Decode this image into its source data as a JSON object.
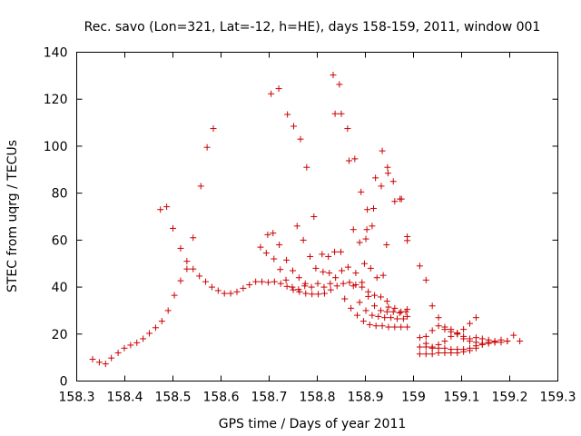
{
  "colors": {
    "series": "#cc0000",
    "axes": "#000000",
    "background": "#ffffff"
  },
  "chart_data": {
    "type": "scatter",
    "title": "Rec. savo (Lon=321, Lat=-12, h=HE), days 158-159, 2011, window 001",
    "xlabel": "GPS time / Days of year 2011",
    "ylabel": "STEC from uqrg / TECUs",
    "xlim": [
      158.3,
      159.3
    ],
    "ylim": [
      0,
      140
    ],
    "xticks": [
      158.3,
      158.4,
      158.5,
      158.6,
      158.7,
      158.8,
      158.9,
      159,
      159.1,
      159.2,
      159.3
    ],
    "xtick_labels": [
      "158.3",
      "158.4",
      "158.5",
      "158.6",
      "158.7",
      "158.8",
      "158.9",
      "159",
      "159.1",
      "159.2",
      "159.3"
    ],
    "yticks": [
      0,
      20,
      40,
      60,
      80,
      100,
      120,
      140
    ],
    "ytick_labels": [
      "0",
      "20",
      "40",
      "60",
      "80",
      "100",
      "120",
      "140"
    ],
    "grid": false,
    "legend": "none",
    "marker": "+",
    "series": [
      {
        "points": [
          [
            158.333,
            9.3
          ],
          [
            158.347,
            8.0
          ],
          [
            158.36,
            7.3
          ],
          [
            158.372,
            9.8
          ],
          [
            158.386,
            12.0
          ],
          [
            158.399,
            14.0
          ],
          [
            158.412,
            15.3
          ],
          [
            158.425,
            16.3
          ],
          [
            158.438,
            18.0
          ],
          [
            158.451,
            20.3
          ],
          [
            158.464,
            22.7
          ],
          [
            158.477,
            25.5
          ],
          [
            158.49,
            30.0
          ],
          [
            158.503,
            36.5
          ],
          [
            158.516,
            42.7
          ],
          [
            158.529,
            47.7
          ],
          [
            158.542,
            47.7
          ],
          [
            158.555,
            44.7
          ],
          [
            158.568,
            42.3
          ],
          [
            158.581,
            40.0
          ],
          [
            158.594,
            38.5
          ],
          [
            158.607,
            37.3
          ],
          [
            158.62,
            37.3
          ],
          [
            158.633,
            38.0
          ],
          [
            158.646,
            39.5
          ],
          [
            158.659,
            41.0
          ],
          [
            158.672,
            42.3
          ],
          [
            158.685,
            42.3
          ],
          [
            158.698,
            42.0
          ],
          [
            158.711,
            42.3
          ],
          [
            158.724,
            41.5
          ],
          [
            158.737,
            40.3
          ],
          [
            158.75,
            38.8
          ],
          [
            158.763,
            38.0
          ],
          [
            158.776,
            37.3
          ],
          [
            158.789,
            37.0
          ],
          [
            158.802,
            37.0
          ],
          [
            158.815,
            37.3
          ],
          [
            158.828,
            38.8
          ],
          [
            158.841,
            40.5
          ],
          [
            158.854,
            41.5
          ],
          [
            158.867,
            42.0
          ],
          [
            158.88,
            41.0
          ],
          [
            158.893,
            40.0
          ],
          [
            158.906,
            38.0
          ],
          [
            158.919,
            36.5
          ],
          [
            158.932,
            35.8
          ],
          [
            158.945,
            34.0
          ],
          [
            158.474,
            73.0
          ],
          [
            158.487,
            74.2
          ],
          [
            158.5,
            65.0
          ],
          [
            158.516,
            56.5
          ],
          [
            158.529,
            51.0
          ],
          [
            158.542,
            61.0
          ],
          [
            158.558,
            83.0
          ],
          [
            158.571,
            99.5
          ],
          [
            158.584,
            107.5
          ],
          [
            158.682,
            57.0
          ],
          [
            158.694,
            54.5
          ],
          [
            158.697,
            62.3
          ],
          [
            158.708,
            63.0
          ],
          [
            158.721,
            58.0
          ],
          [
            158.704,
            122.3
          ],
          [
            158.72,
            124.5
          ],
          [
            158.738,
            113.5
          ],
          [
            158.751,
            108.5
          ],
          [
            158.765,
            103.0
          ],
          [
            158.778,
            91.0
          ],
          [
            158.793,
            70.0
          ],
          [
            158.758,
            66.0
          ],
          [
            158.771,
            60.0
          ],
          [
            158.785,
            53.0
          ],
          [
            158.71,
            52.0
          ],
          [
            158.723,
            47.5
          ],
          [
            158.736,
            51.5
          ],
          [
            158.749,
            47.0
          ],
          [
            158.762,
            44.0
          ],
          [
            158.775,
            41.5
          ],
          [
            158.788,
            40.0
          ],
          [
            158.801,
            41.5
          ],
          [
            158.814,
            40.0
          ],
          [
            158.827,
            41.5
          ],
          [
            158.735,
            43.0
          ],
          [
            158.748,
            40.0
          ],
          [
            158.761,
            39.0
          ],
          [
            158.774,
            40.5
          ],
          [
            158.797,
            48.0
          ],
          [
            158.81,
            54.0
          ],
          [
            158.823,
            53.0
          ],
          [
            158.836,
            55.0
          ],
          [
            158.849,
            55.0
          ],
          [
            158.812,
            46.5
          ],
          [
            158.825,
            46.0
          ],
          [
            158.838,
            44.0
          ],
          [
            158.851,
            47.0
          ],
          [
            158.864,
            48.5
          ],
          [
            158.833,
            130.3
          ],
          [
            158.846,
            126.3
          ],
          [
            158.837,
            113.8
          ],
          [
            158.85,
            113.8
          ],
          [
            158.863,
            107.5
          ],
          [
            158.866,
            93.8
          ],
          [
            158.878,
            94.6
          ],
          [
            158.891,
            80.5
          ],
          [
            158.904,
            73.0
          ],
          [
            158.917,
            73.5
          ],
          [
            158.921,
            86.5
          ],
          [
            158.935,
            98.0
          ],
          [
            158.933,
            83.0
          ],
          [
            158.946,
            91.0
          ],
          [
            158.947,
            88.5
          ],
          [
            158.958,
            85.0
          ],
          [
            158.961,
            76.5
          ],
          [
            158.972,
            77.5
          ],
          [
            158.975,
            77.5
          ],
          [
            158.875,
            64.5
          ],
          [
            158.888,
            59.0
          ],
          [
            158.901,
            60.5
          ],
          [
            158.903,
            64.5
          ],
          [
            158.914,
            66.0
          ],
          [
            158.898,
            50.0
          ],
          [
            158.911,
            48.0
          ],
          [
            158.924,
            44.0
          ],
          [
            158.937,
            45.0
          ],
          [
            158.944,
            58.0
          ],
          [
            158.857,
            35.0
          ],
          [
            158.87,
            31.0
          ],
          [
            158.883,
            28.0
          ],
          [
            158.896,
            25.5
          ],
          [
            158.909,
            24.0
          ],
          [
            158.922,
            23.5
          ],
          [
            158.935,
            23.5
          ],
          [
            158.948,
            23.0
          ],
          [
            158.961,
            23.0
          ],
          [
            158.974,
            23.0
          ],
          [
            158.987,
            23.0
          ],
          [
            158.875,
            40.5
          ],
          [
            158.888,
            33.5
          ],
          [
            158.901,
            30.0
          ],
          [
            158.914,
            28.0
          ],
          [
            158.927,
            27.5
          ],
          [
            158.94,
            27.0
          ],
          [
            158.953,
            27.0
          ],
          [
            158.966,
            26.5
          ],
          [
            158.979,
            26.5
          ],
          [
            158.987,
            27.5
          ],
          [
            158.88,
            46.0
          ],
          [
            158.893,
            42.0
          ],
          [
            158.906,
            36.0
          ],
          [
            158.919,
            32.0
          ],
          [
            158.932,
            30.0
          ],
          [
            158.945,
            29.5
          ],
          [
            158.958,
            29.5
          ],
          [
            158.971,
            29.0
          ],
          [
            158.984,
            29.5
          ],
          [
            158.948,
            31.5
          ],
          [
            158.961,
            31.0
          ],
          [
            158.974,
            29.5
          ],
          [
            158.987,
            30.5
          ],
          [
            158.987,
            61.5
          ],
          [
            158.987,
            59.8
          ],
          [
            159.013,
            18.5
          ],
          [
            159.026,
            16.0
          ],
          [
            159.039,
            14.5
          ],
          [
            159.052,
            14.0
          ],
          [
            159.065,
            14.0
          ],
          [
            159.078,
            13.5
          ],
          [
            159.091,
            13.5
          ],
          [
            159.104,
            13.5
          ],
          [
            159.117,
            14.0
          ],
          [
            159.13,
            15.0
          ],
          [
            159.143,
            15.5
          ],
          [
            159.156,
            16.0
          ],
          [
            159.169,
            16.5
          ],
          [
            159.182,
            16.5
          ],
          [
            159.195,
            17.0
          ],
          [
            159.208,
            19.5
          ],
          [
            159.221,
            17.0
          ],
          [
            159.013,
            11.5
          ],
          [
            159.026,
            11.5
          ],
          [
            159.039,
            11.5
          ],
          [
            159.052,
            12.0
          ],
          [
            159.065,
            12.0
          ],
          [
            159.078,
            12.0
          ],
          [
            159.091,
            12.0
          ],
          [
            159.104,
            12.5
          ],
          [
            159.117,
            13.0
          ],
          [
            159.13,
            14.0
          ],
          [
            159.013,
            14.5
          ],
          [
            159.026,
            14.5
          ],
          [
            159.039,
            14.0
          ],
          [
            159.052,
            15.5
          ],
          [
            159.065,
            17.0
          ],
          [
            159.078,
            19.0
          ],
          [
            159.091,
            20.5
          ],
          [
            159.104,
            19.0
          ],
          [
            159.117,
            17.0
          ],
          [
            159.13,
            16.5
          ],
          [
            159.143,
            16.0
          ],
          [
            159.156,
            16.5
          ],
          [
            159.169,
            17.0
          ],
          [
            159.182,
            17.5
          ],
          [
            159.195,
            17.0
          ],
          [
            159.013,
            49.0
          ],
          [
            159.026,
            43.0
          ],
          [
            159.039,
            32.0
          ],
          [
            159.052,
            27.0
          ],
          [
            159.065,
            22.0
          ],
          [
            159.078,
            21.0
          ],
          [
            159.091,
            20.0
          ],
          [
            159.104,
            22.0
          ],
          [
            159.117,
            24.5
          ],
          [
            159.13,
            27.0
          ],
          [
            159.026,
            19.0
          ],
          [
            159.039,
            21.5
          ],
          [
            159.052,
            23.5
          ],
          [
            159.065,
            23.0
          ],
          [
            159.078,
            22.0
          ],
          [
            159.091,
            20.0
          ],
          [
            159.104,
            18.0
          ],
          [
            159.117,
            18.0
          ],
          [
            159.13,
            18.5
          ],
          [
            159.143,
            18.0
          ],
          [
            159.156,
            17.5
          ],
          [
            159.169,
            16.5
          ]
        ]
      }
    ]
  }
}
